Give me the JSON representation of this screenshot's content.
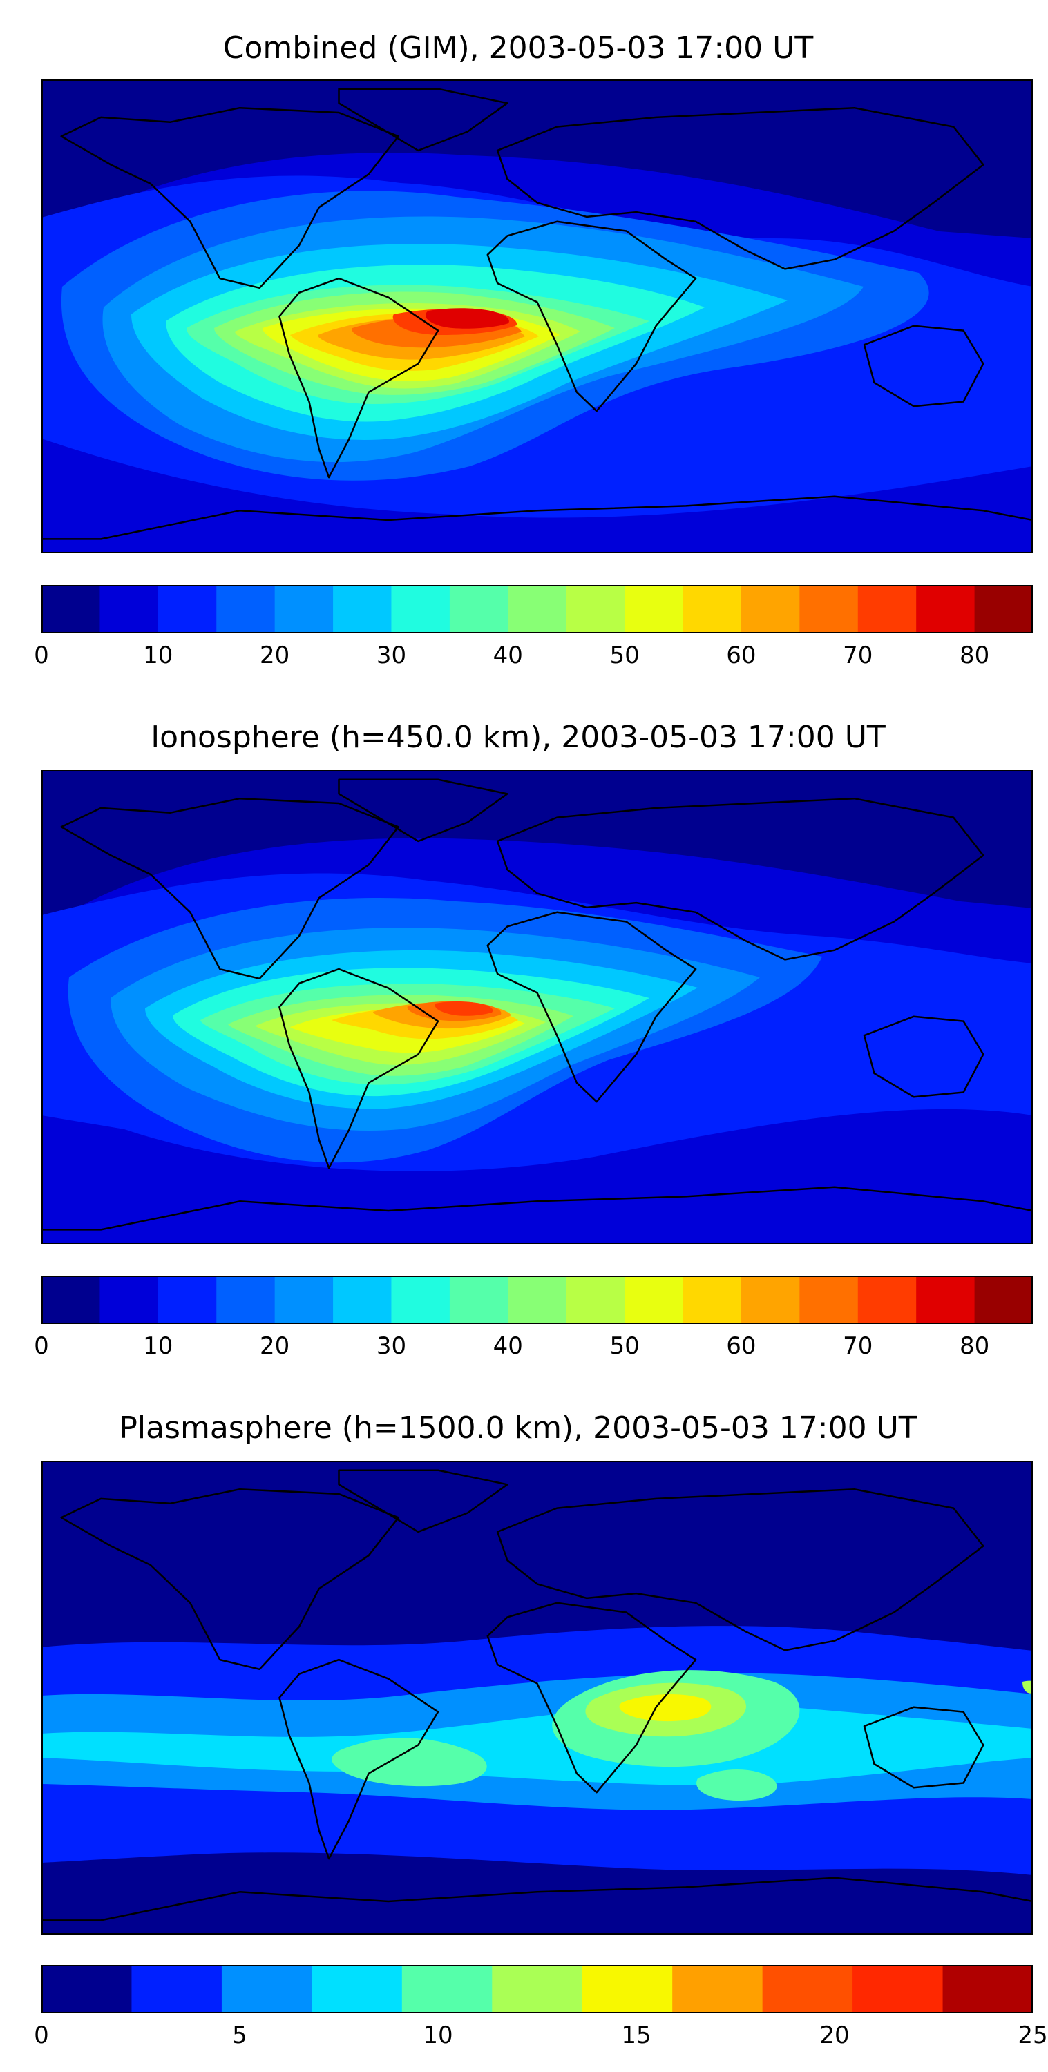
{
  "panels": [
    {
      "title": "Combined (GIM), 2003-05-03 17:00 UT",
      "max": 85,
      "ticks": [
        "0",
        "10",
        "20",
        "30",
        "40",
        "50",
        "60",
        "70",
        "80"
      ],
      "colors": [
        "#00008f",
        "#0000d9",
        "#0020ff",
        "#0060ff",
        "#0090ff",
        "#00c8ff",
        "#20fce0",
        "#55ffaa",
        "#88ff75",
        "#b8ff45",
        "#e8ff10",
        "#ffd800",
        "#ffa400",
        "#ff7000",
        "#ff3c00",
        "#e00000",
        "#990000"
      ],
      "hotspots": [
        {
          "region": "tropical-atlantic",
          "value": 80
        },
        {
          "region": "south-america",
          "value": 65
        }
      ]
    },
    {
      "title": "Ionosphere  (h=450.0 km), 2003-05-03 17:00 UT",
      "max": 85,
      "ticks": [
        "0",
        "10",
        "20",
        "30",
        "40",
        "50",
        "60",
        "70",
        "80"
      ],
      "colors": [
        "#00008f",
        "#0000d9",
        "#0020ff",
        "#0060ff",
        "#0090ff",
        "#00c8ff",
        "#20fce0",
        "#55ffaa",
        "#88ff75",
        "#b8ff45",
        "#e8ff10",
        "#ffd800",
        "#ffa400",
        "#ff7000",
        "#ff3c00",
        "#e00000",
        "#990000"
      ],
      "hotspots": [
        {
          "region": "tropical-atlantic",
          "value": 70
        },
        {
          "region": "south-america",
          "value": 55
        }
      ]
    },
    {
      "title": "Plasmasphere (h=1500.0 km), 2003-05-03 17:00 UT",
      "max": 25,
      "ticks": [
        "0",
        "5",
        "10",
        "15",
        "20",
        "25"
      ],
      "colors": [
        "#00008f",
        "#0020ff",
        "#0090ff",
        "#00e0ff",
        "#55ffaa",
        "#aaff55",
        "#f8f800",
        "#ffa000",
        "#ff5000",
        "#ff2800",
        "#b00000"
      ],
      "hotspots": [
        {
          "region": "east-africa",
          "value": 15
        },
        {
          "region": "south-america",
          "value": 12
        }
      ]
    }
  ]
}
